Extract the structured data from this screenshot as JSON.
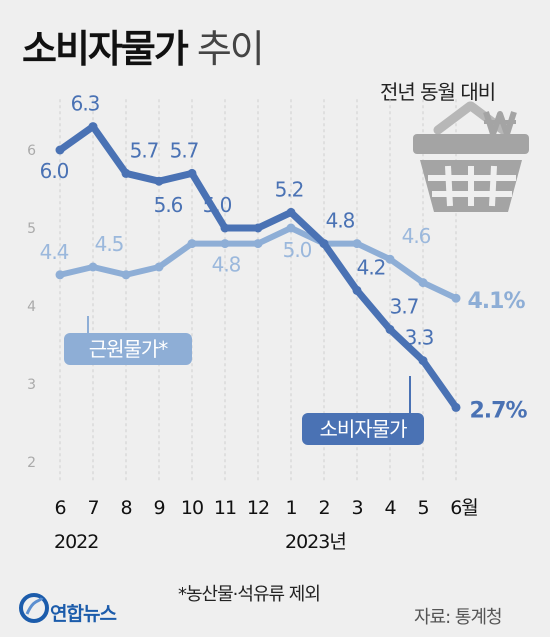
{
  "chart_data": {
    "type": "line",
    "title": "소비자물가",
    "title_suffix": "추이",
    "subtitle": "전년 동월 대비",
    "categories": [
      "6",
      "7",
      "8",
      "9",
      "10",
      "11",
      "12",
      "1",
      "2",
      "3",
      "4",
      "5",
      "6월"
    ],
    "year_labels": [
      {
        "index": 0,
        "text": "2022"
      },
      {
        "index": 7,
        "text": "2023년"
      }
    ],
    "series": [
      {
        "name": "소비자물가",
        "color": "#4a72b4",
        "values": [
          6.0,
          6.3,
          5.7,
          5.6,
          5.7,
          5.0,
          5.0,
          5.2,
          4.8,
          4.2,
          3.7,
          3.3,
          2.7
        ],
        "labels": [
          "6.0",
          "6.3",
          "5.7",
          "5.6",
          "5.7",
          "5.0",
          null,
          "5.2",
          "4.8",
          "4.2",
          "3.7",
          "3.3",
          "2.7%"
        ]
      },
      {
        "name": "근원물가*",
        "color": "#8eaed6",
        "values": [
          4.4,
          4.5,
          4.4,
          4.5,
          4.8,
          4.8,
          4.8,
          5.0,
          4.8,
          4.8,
          4.6,
          4.3,
          4.1
        ],
        "labels": [
          "4.4",
          "4.5",
          null,
          null,
          "4.8",
          null,
          null,
          "5.0",
          null,
          null,
          "4.6",
          null,
          "4.1%"
        ]
      }
    ],
    "yticks": [
      2,
      3,
      4,
      5,
      6
    ],
    "ylim": [
      2,
      6.6
    ]
  },
  "footnote": "*농산물·석유류 제외",
  "source": "자료: 통계청",
  "logo_text": "연합뉴스",
  "icons": {
    "basket": "shopping-basket-icon",
    "won": "won-icon"
  }
}
